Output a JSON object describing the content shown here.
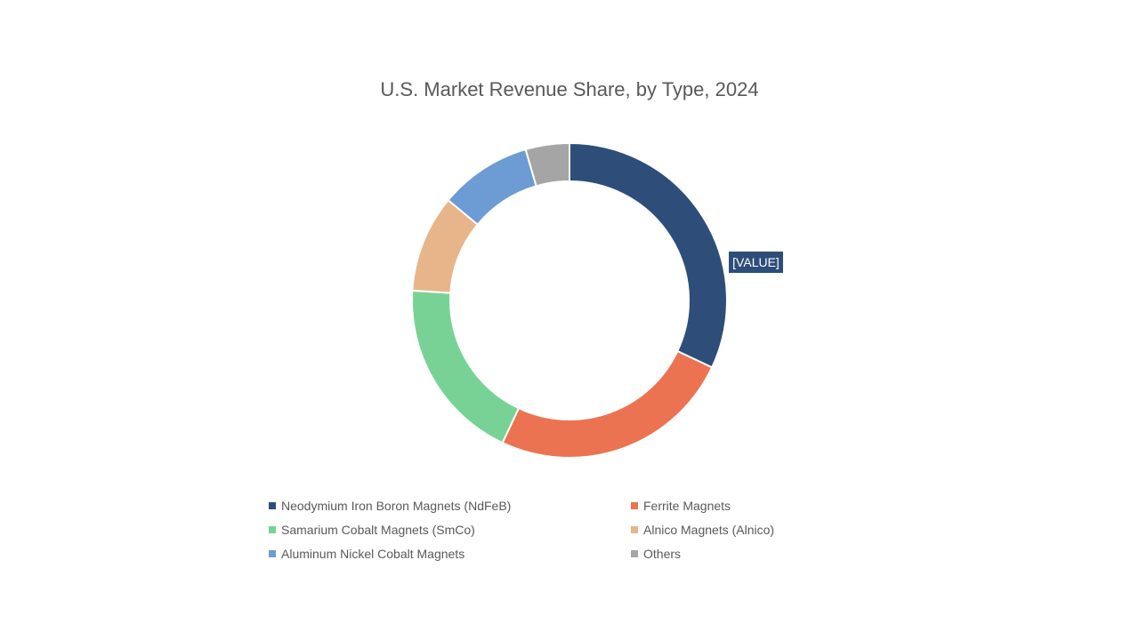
{
  "chart_data": {
    "type": "pie",
    "variant": "donut",
    "title": "U.S. Market Revenue Share, by Type, 2024",
    "legend_position": "bottom",
    "data_label": "[VALUE]",
    "slices": [
      {
        "label": "Neodymium Iron Boron Magnets (NdFeB)",
        "value": 32,
        "color": "#2E4E79"
      },
      {
        "label": "Ferrite Magnets",
        "value": 25,
        "color": "#EB7351"
      },
      {
        "label": "Samarium Cobalt Magnets (SmCo)",
        "value": 19,
        "color": "#78D296"
      },
      {
        "label": "Alnico Magnets (Alnico)",
        "value": 10,
        "color": "#E8B48A"
      },
      {
        "label": "Aluminum Nickel Cobalt Magnets",
        "value": 9.5,
        "color": "#6D9BD3"
      },
      {
        "label": "Others",
        "value": 4.5,
        "color": "#A5A5A5"
      }
    ]
  }
}
